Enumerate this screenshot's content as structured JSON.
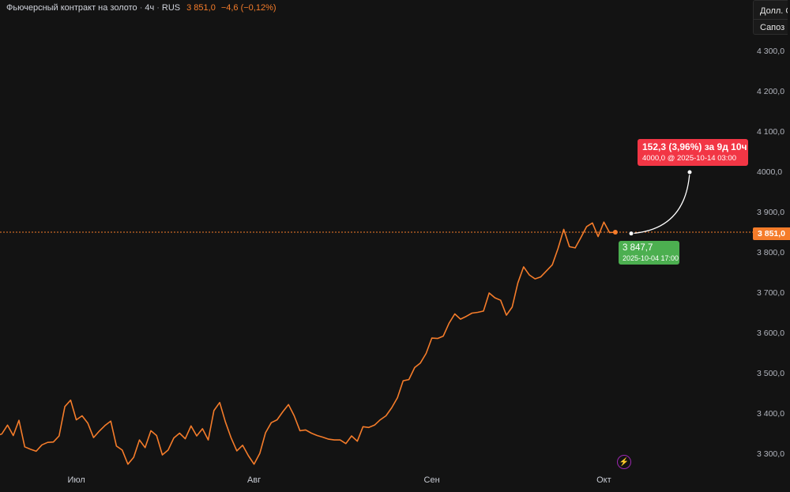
{
  "header": {
    "title": "Фьючерсный контракт на золото",
    "sep": "·",
    "interval": "4ч",
    "exchange": "RUS",
    "last_price": "3 851,0",
    "change": "−4,6 (−0,12%)"
  },
  "currency_box": {
    "line1": "Долл. США",
    "line2": "Сапоз"
  },
  "current_price_label": "3 851,0",
  "projection": {
    "change_text": "152,3 (3,96%) за 9д 10ч",
    "target_text": "4000,0 @ 2025-10-14  03:00",
    "start_price_text": "3 847,7",
    "start_date_text": "2025-10-04 17:00",
    "start_value": 3847.7,
    "target_value": 4000.0
  },
  "colors": {
    "background": "#131313",
    "line": "#f57c2a",
    "up_label": "#4caf50",
    "down_label": "#f23645",
    "price_tag": "#f57c2a"
  },
  "icons": {
    "bolt": "lightning-icon"
  },
  "chart_data": {
    "type": "line",
    "title": "Фьючерсный контракт на золото · 4ч · RUS",
    "ylim": [
      3250,
      4350
    ],
    "y_ticks": [
      3300,
      3400,
      3500,
      3600,
      3700,
      3800,
      3900,
      4000,
      4100,
      4200,
      4300
    ],
    "y_tick_labels": [
      "3 300,0",
      "3 400,0",
      "3 500,0",
      "3 600,0",
      "3 700,0",
      "3 800,0",
      "3 900,0",
      "4000,0",
      "4 100,0",
      "4 200,0",
      "4 300,0"
    ],
    "x_tick_labels": [
      {
        "label": "Июл",
        "date": "2025-07-01"
      },
      {
        "label": "Авг",
        "date": "2025-08-01"
      },
      {
        "label": "Сен",
        "date": "2025-09-01"
      },
      {
        "label": "Окт",
        "date": "2025-10-01"
      }
    ],
    "x_range": [
      "2025-06-17",
      "2025-10-15"
    ],
    "series": [
      {
        "values": [
          [
            "2025-06-17",
            3345
          ],
          [
            "2025-06-18",
            3350
          ],
          [
            "2025-06-19",
            3372
          ],
          [
            "2025-06-20",
            3346
          ],
          [
            "2025-06-21",
            3384
          ],
          [
            "2025-06-22",
            3318
          ],
          [
            "2025-06-23",
            3312
          ],
          [
            "2025-06-24",
            3307
          ],
          [
            "2025-06-25",
            3323
          ],
          [
            "2025-06-26",
            3329
          ],
          [
            "2025-06-27",
            3330
          ],
          [
            "2025-06-28",
            3345
          ],
          [
            "2025-06-29",
            3418
          ],
          [
            "2025-06-30",
            3434
          ],
          [
            "2025-07-01",
            3385
          ],
          [
            "2025-07-02",
            3395
          ],
          [
            "2025-07-03",
            3377
          ],
          [
            "2025-07-04",
            3341
          ],
          [
            "2025-07-05",
            3357
          ],
          [
            "2025-07-06",
            3371
          ],
          [
            "2025-07-07",
            3382
          ],
          [
            "2025-07-08",
            3320
          ],
          [
            "2025-07-09",
            3310
          ],
          [
            "2025-07-10",
            3275
          ],
          [
            "2025-07-11",
            3292
          ],
          [
            "2025-07-12",
            3335
          ],
          [
            "2025-07-13",
            3316
          ],
          [
            "2025-07-14",
            3358
          ],
          [
            "2025-07-15",
            3346
          ],
          [
            "2025-07-16",
            3298
          ],
          [
            "2025-07-17",
            3310
          ],
          [
            "2025-07-18",
            3340
          ],
          [
            "2025-07-19",
            3352
          ],
          [
            "2025-07-20",
            3338
          ],
          [
            "2025-07-21",
            3370
          ],
          [
            "2025-07-22",
            3345
          ],
          [
            "2025-07-23",
            3363
          ],
          [
            "2025-07-24",
            3335
          ],
          [
            "2025-07-25",
            3408
          ],
          [
            "2025-07-26",
            3428
          ],
          [
            "2025-07-27",
            3380
          ],
          [
            "2025-07-28",
            3340
          ],
          [
            "2025-07-29",
            3308
          ],
          [
            "2025-07-30",
            3322
          ],
          [
            "2025-07-31",
            3296
          ],
          [
            "2025-08-01",
            3275
          ],
          [
            "2025-08-02",
            3302
          ],
          [
            "2025-08-03",
            3353
          ],
          [
            "2025-08-04",
            3378
          ],
          [
            "2025-08-05",
            3385
          ],
          [
            "2025-08-06",
            3405
          ],
          [
            "2025-08-07",
            3423
          ],
          [
            "2025-08-08",
            3395
          ],
          [
            "2025-08-09",
            3358
          ],
          [
            "2025-08-10",
            3360
          ],
          [
            "2025-08-11",
            3352
          ],
          [
            "2025-08-12",
            3346
          ],
          [
            "2025-08-13",
            3342
          ],
          [
            "2025-08-14",
            3337
          ],
          [
            "2025-08-15",
            3335
          ],
          [
            "2025-08-16",
            3335
          ],
          [
            "2025-08-17",
            3326
          ],
          [
            "2025-08-18",
            3345
          ],
          [
            "2025-08-19",
            3332
          ],
          [
            "2025-08-20",
            3368
          ],
          [
            "2025-08-21",
            3366
          ],
          [
            "2025-08-22",
            3372
          ],
          [
            "2025-08-23",
            3385
          ],
          [
            "2025-08-24",
            3395
          ],
          [
            "2025-08-25",
            3415
          ],
          [
            "2025-08-26",
            3440
          ],
          [
            "2025-08-27",
            3482
          ],
          [
            "2025-08-28",
            3485
          ],
          [
            "2025-08-29",
            3515
          ],
          [
            "2025-08-30",
            3526
          ],
          [
            "2025-08-31",
            3550
          ],
          [
            "2025-09-01",
            3588
          ],
          [
            "2025-09-02",
            3587
          ],
          [
            "2025-09-03",
            3593
          ],
          [
            "2025-09-04",
            3625
          ],
          [
            "2025-09-05",
            3648
          ],
          [
            "2025-09-06",
            3635
          ],
          [
            "2025-09-07",
            3642
          ],
          [
            "2025-09-08",
            3650
          ],
          [
            "2025-09-09",
            3652
          ],
          [
            "2025-09-10",
            3655
          ],
          [
            "2025-09-11",
            3700
          ],
          [
            "2025-09-12",
            3688
          ],
          [
            "2025-09-13",
            3682
          ],
          [
            "2025-09-14",
            3645
          ],
          [
            "2025-09-15",
            3665
          ],
          [
            "2025-09-16",
            3725
          ],
          [
            "2025-09-17",
            3765
          ],
          [
            "2025-09-18",
            3745
          ],
          [
            "2025-09-19",
            3735
          ],
          [
            "2025-09-20",
            3740
          ],
          [
            "2025-09-21",
            3755
          ],
          [
            "2025-09-22",
            3770
          ],
          [
            "2025-09-23",
            3810
          ],
          [
            "2025-09-24",
            3858
          ],
          [
            "2025-09-25",
            3815
          ],
          [
            "2025-09-26",
            3812
          ],
          [
            "2025-09-27",
            3838
          ],
          [
            "2025-09-28",
            3865
          ],
          [
            "2025-09-29",
            3874
          ],
          [
            "2025-09-30",
            3840
          ],
          [
            "2025-10-01",
            3876
          ],
          [
            "2025-10-02",
            3850
          ],
          [
            "2025-10-03",
            3851
          ]
        ]
      }
    ]
  }
}
